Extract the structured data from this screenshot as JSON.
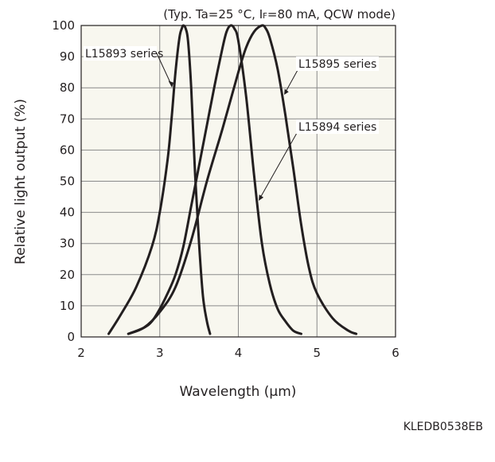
{
  "chart_data": {
    "type": "line",
    "conditions": "(Typ. Ta=25 °C, IF=80 mA, QCW mode)",
    "conditions_parts": [
      "(Typ. Ta=25 °C, I",
      "F",
      "=80 mA, QCW mode)"
    ],
    "xlabel": "Wavelength (μm)",
    "ylabel": "Relative light output (%)",
    "xlim": [
      2,
      6
    ],
    "ylim": [
      0,
      100
    ],
    "xticks": [
      "2",
      "3",
      "4",
      "5",
      "6"
    ],
    "yticks": [
      "0",
      "10",
      "20",
      "30",
      "40",
      "50",
      "60",
      "70",
      "80",
      "90",
      "100"
    ],
    "grid": true,
    "series": [
      {
        "name": "L15893 series",
        "x": [
          2.35,
          2.5,
          2.7,
          2.9,
          3.0,
          3.1,
          3.15,
          3.2,
          3.25,
          3.28,
          3.3,
          3.33,
          3.36,
          3.4,
          3.45,
          3.5,
          3.55,
          3.6,
          3.64
        ],
        "y": [
          1,
          7,
          16,
          29,
          40,
          57,
          70,
          85,
          96,
          99,
          100,
          99,
          95,
          80,
          52,
          30,
          13,
          5,
          1
        ]
      },
      {
        "name": "L15894 series",
        "x": [
          2.6,
          2.8,
          2.9,
          3.0,
          3.1,
          3.2,
          3.3,
          3.4,
          3.5,
          3.6,
          3.7,
          3.8,
          3.85,
          3.9,
          3.95,
          4.0,
          4.1,
          4.2,
          4.3,
          4.4,
          4.5,
          4.6,
          4.7,
          4.8
        ],
        "y": [
          1,
          3,
          5,
          9,
          14,
          20,
          29,
          42,
          55,
          68,
          81,
          93,
          98,
          100,
          99,
          95,
          77,
          52,
          30,
          17,
          9,
          5,
          2,
          1
        ]
      },
      {
        "name": "L15895 series",
        "x": [
          2.6,
          2.8,
          3.0,
          3.2,
          3.4,
          3.6,
          3.8,
          4.0,
          4.1,
          4.2,
          4.3,
          4.35,
          4.4,
          4.5,
          4.6,
          4.7,
          4.8,
          4.9,
          5.0,
          5.2,
          5.4,
          5.5
        ],
        "y": [
          1,
          3,
          8,
          16,
          31,
          50,
          67,
          85,
          93,
          98,
          100,
          99,
          96,
          86,
          71,
          54,
          36,
          22,
          14,
          6,
          2,
          1
        ]
      }
    ],
    "doc_id": "KLEDB0538EB"
  }
}
